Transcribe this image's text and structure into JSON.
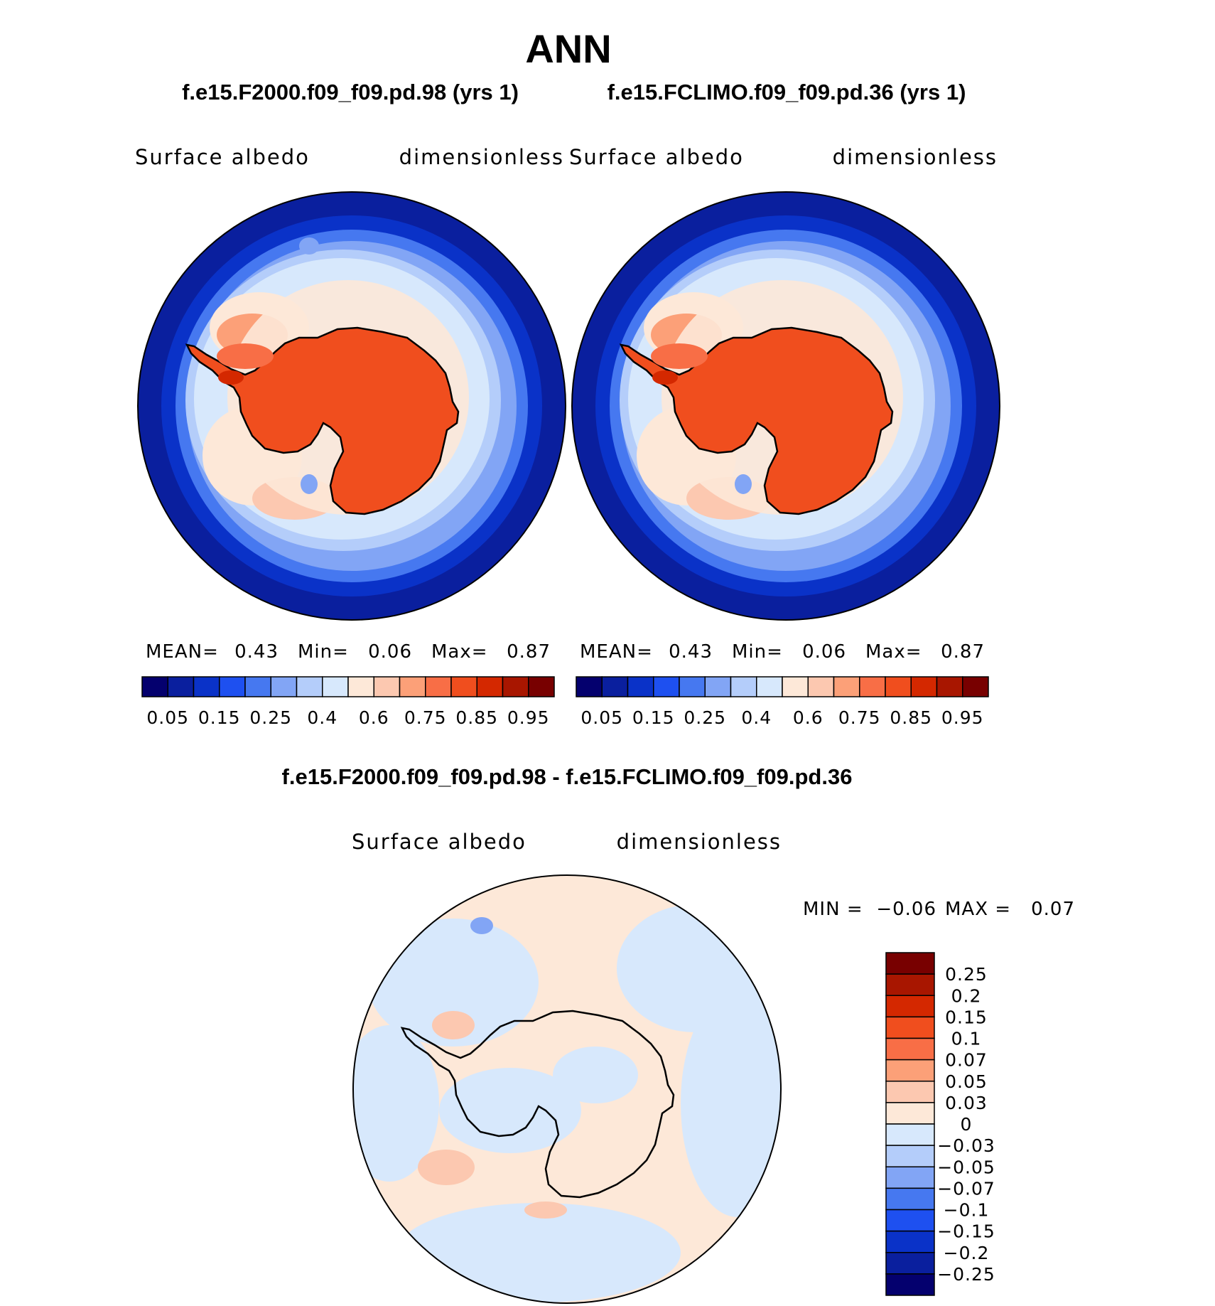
{
  "header": {
    "title": "ANN",
    "case_left": "f.e15.F2000.f09_f09.pd.98 (yrs 1)",
    "case_right": "f.e15.FCLIMO.f09_f09.pd.36 (yrs 1)",
    "diff_title": "f.e15.F2000.f09_f09.pd.98 - f.e15.FCLIMO.f09_f09.pd.36"
  },
  "panels": [
    {
      "variable": "Surface albedo",
      "units": "dimensionless",
      "stats": {
        "mean_label": "MEAN=",
        "mean": "0.43",
        "min_label": "Min=",
        "min": "0.06",
        "max_label": "Max=",
        "max": "0.87"
      }
    },
    {
      "variable": "Surface albedo",
      "units": "dimensionless",
      "stats": {
        "mean_label": "MEAN=",
        "mean": "0.43",
        "min_label": "Min=",
        "min": "0.06",
        "max_label": "Max=",
        "max": "0.87"
      }
    }
  ],
  "diff_panel": {
    "variable": "Surface albedo",
    "units": "dimensionless",
    "min_label": "MIN =",
    "min": "−0.06",
    "max_label": "MAX =",
    "max": "0.07"
  },
  "colorbar": {
    "colors": [
      "#04006e",
      "#0a1f9e",
      "#0a32c8",
      "#1e50f0",
      "#4678f0",
      "#82a5f5",
      "#b4cdfa",
      "#d7e8fc",
      "#fde8d8",
      "#fcc8b0",
      "#fca078",
      "#f86e46",
      "#f04e1e",
      "#d42800",
      "#a81600",
      "#780000"
    ],
    "labels": [
      "0.05",
      "0.15",
      "0.25",
      "0.4",
      "0.6",
      "0.75",
      "0.85",
      "0.95"
    ]
  },
  "diff_colorbar": {
    "colors": [
      "#780000",
      "#a81600",
      "#d42800",
      "#f04e1e",
      "#f86e46",
      "#fca078",
      "#fcc8b0",
      "#fde8d8",
      "#d7e8fc",
      "#b4cdfa",
      "#82a5f5",
      "#4678f0",
      "#1e50f0",
      "#0a32c8",
      "#0a1f9e",
      "#04006e"
    ],
    "labels": [
      "0.25",
      "0.2",
      "0.15",
      "0.1",
      "0.07",
      "0.05",
      "0.03",
      "0",
      "−0.03",
      "−0.05",
      "−0.07",
      "−0.1",
      "−0.15",
      "−0.2",
      "−0.25"
    ]
  }
}
